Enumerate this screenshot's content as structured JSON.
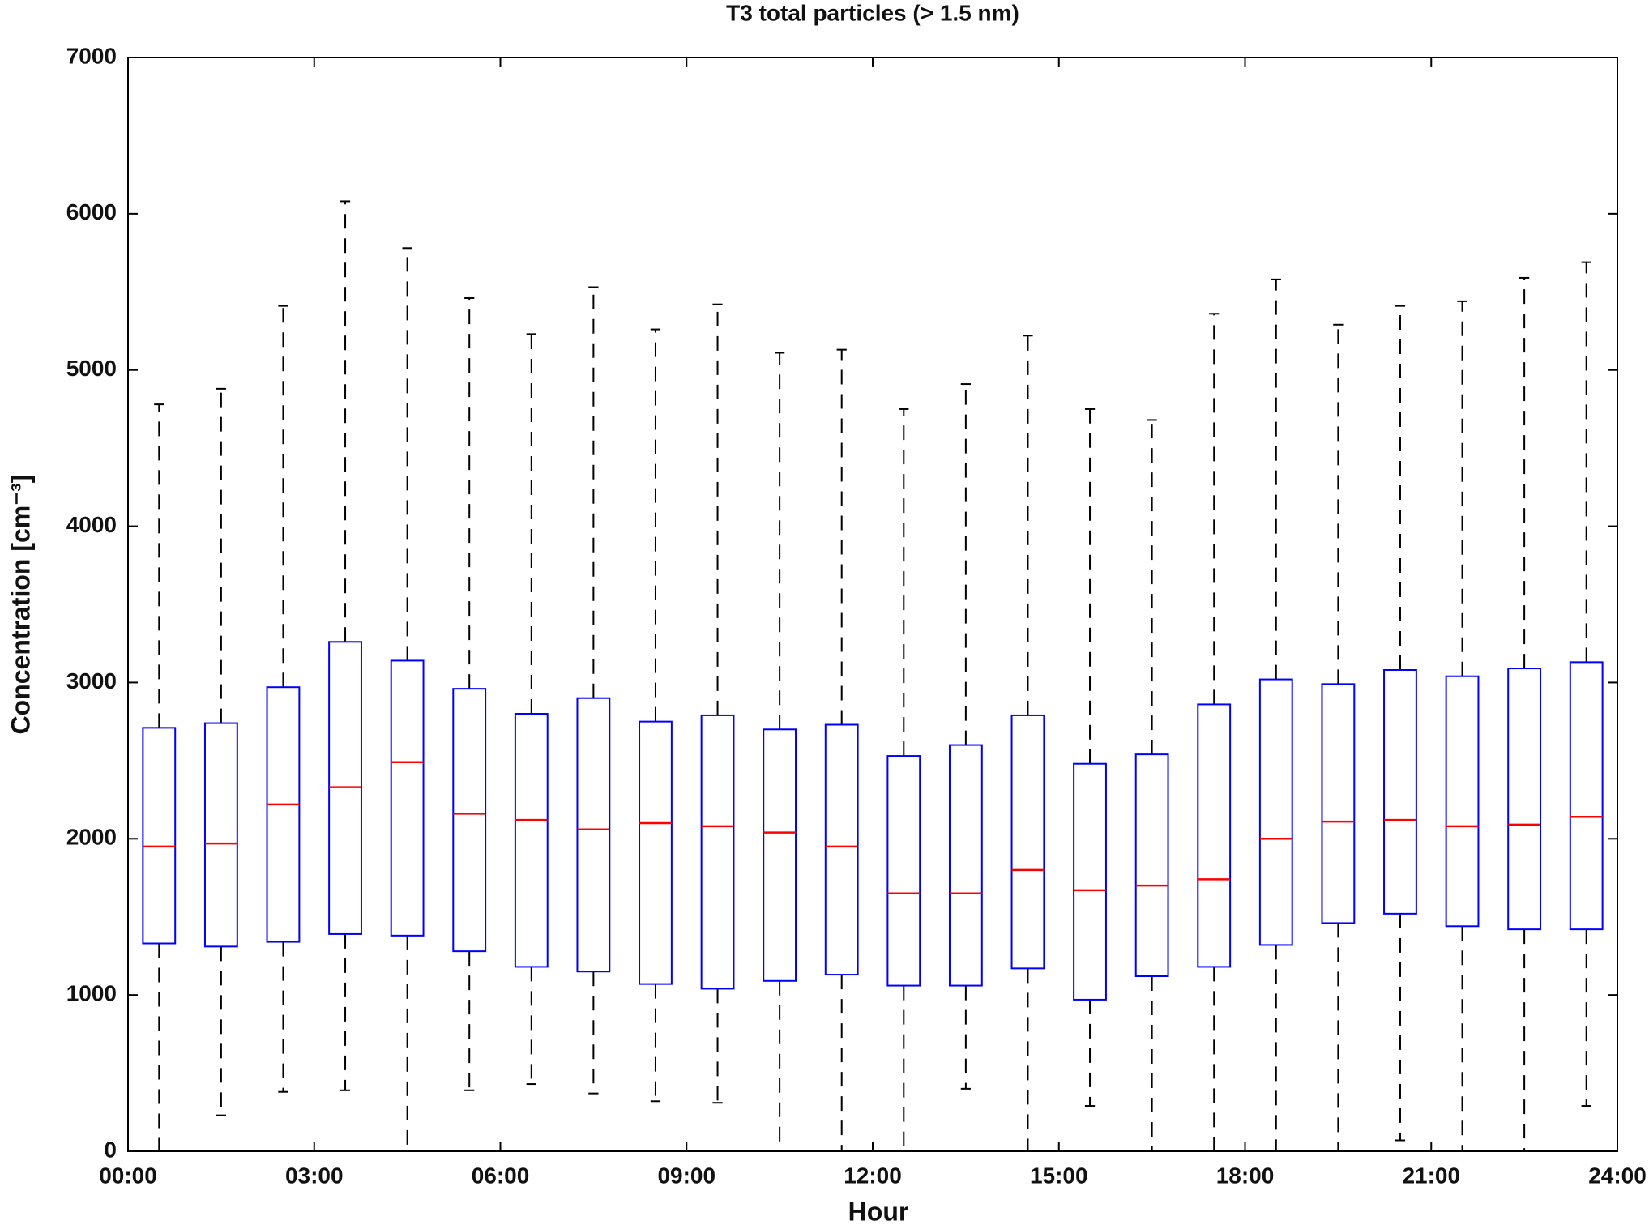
{
  "chart_data": {
    "type": "box",
    "title": "T3 total particles (> 1.5 nm)",
    "xlabel": "Hour",
    "ylabel": "Concentration [cm⁻³]",
    "x": [
      0.5,
      1.5,
      2.5,
      3.5,
      4.5,
      5.5,
      6.5,
      7.5,
      8.5,
      9.5,
      10.5,
      11.5,
      12.5,
      13.5,
      14.5,
      15.5,
      16.5,
      17.5,
      18.5,
      19.5,
      20.5,
      21.5,
      22.5,
      23.5
    ],
    "whisker_low": [
      0,
      230,
      380,
      390,
      0,
      390,
      430,
      370,
      320,
      310,
      0,
      0,
      0,
      400,
      0,
      290,
      0,
      0,
      0,
      0,
      70,
      0,
      0,
      290
    ],
    "q1": [
      1330,
      1310,
      1340,
      1390,
      1380,
      1280,
      1180,
      1150,
      1070,
      1040,
      1090,
      1130,
      1060,
      1060,
      1170,
      970,
      1120,
      1180,
      1320,
      1460,
      1520,
      1440,
      1420,
      1420
    ],
    "median": [
      1950,
      1970,
      2220,
      2330,
      2490,
      2160,
      2120,
      2060,
      2100,
      2080,
      2040,
      1950,
      1650,
      1650,
      1800,
      1670,
      1700,
      1740,
      2000,
      2110,
      2120,
      2080,
      2090,
      2140
    ],
    "q3": [
      2710,
      2740,
      2970,
      3260,
      3140,
      2960,
      2800,
      2900,
      2750,
      2790,
      2700,
      2730,
      2530,
      2600,
      2790,
      2480,
      2540,
      2860,
      3020,
      2990,
      3080,
      3040,
      3090,
      3130
    ],
    "whisker_high": [
      4780,
      4880,
      5410,
      6080,
      5780,
      5460,
      5230,
      5530,
      5260,
      5420,
      5110,
      5130,
      4750,
      4910,
      5220,
      4750,
      4680,
      5360,
      5580,
      5290,
      5410,
      5440,
      5590,
      5690
    ],
    "box_color": "#0000ff",
    "median_color": "#ff0000",
    "whisker_color": "#000000",
    "xlim": [
      0,
      24
    ],
    "xticks": [
      {
        "value": 0,
        "label": "00:00"
      },
      {
        "value": 3,
        "label": "03:00"
      },
      {
        "value": 6,
        "label": "06:00"
      },
      {
        "value": 9,
        "label": "09:00"
      },
      {
        "value": 12,
        "label": "12:00"
      },
      {
        "value": 15,
        "label": "15:00"
      },
      {
        "value": 18,
        "label": "18:00"
      },
      {
        "value": 21,
        "label": "21:00"
      },
      {
        "value": 24,
        "label": "24:00"
      }
    ],
    "ylim": [
      0,
      7000
    ],
    "yticks": [
      0,
      1000,
      2000,
      3000,
      4000,
      5000,
      6000,
      7000
    ]
  }
}
